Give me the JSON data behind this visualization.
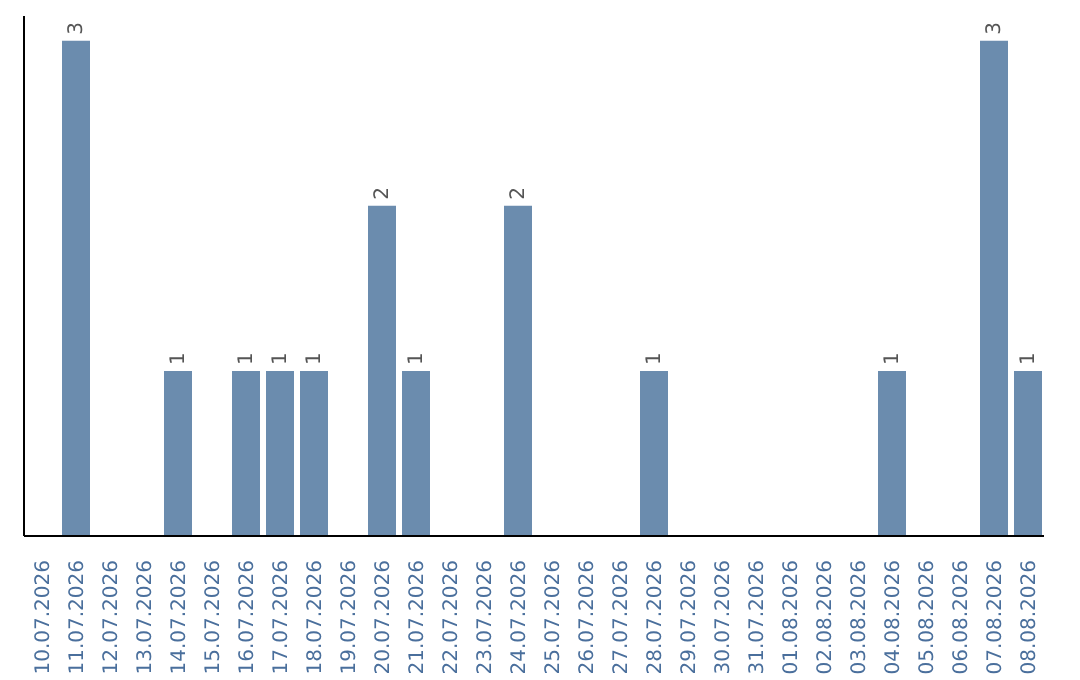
{
  "chart_data": {
    "type": "bar",
    "categories": [
      "10.07.2026",
      "11.07.2026",
      "12.07.2026",
      "13.07.2026",
      "14.07.2026",
      "15.07.2026",
      "16.07.2026",
      "17.07.2026",
      "18.07.2026",
      "19.07.2026",
      "20.07.2026",
      "21.07.2026",
      "22.07.2026",
      "23.07.2026",
      "24.07.2026",
      "25.07.2026",
      "26.07.2026",
      "27.07.2026",
      "28.07.2026",
      "29.07.2026",
      "30.07.2026",
      "31.07.2026",
      "01.08.2026",
      "02.08.2026",
      "03.08.2026",
      "04.08.2026",
      "05.08.2026",
      "06.08.2026",
      "07.08.2026",
      "08.08.2026"
    ],
    "values": [
      null,
      3,
      null,
      null,
      1,
      null,
      1,
      1,
      1,
      null,
      2,
      1,
      null,
      null,
      2,
      null,
      null,
      null,
      1,
      null,
      null,
      null,
      null,
      null,
      null,
      1,
      null,
      null,
      3,
      1
    ],
    "color": "#6b8cae",
    "data_labels": true,
    "tick_labels": "x"
  }
}
